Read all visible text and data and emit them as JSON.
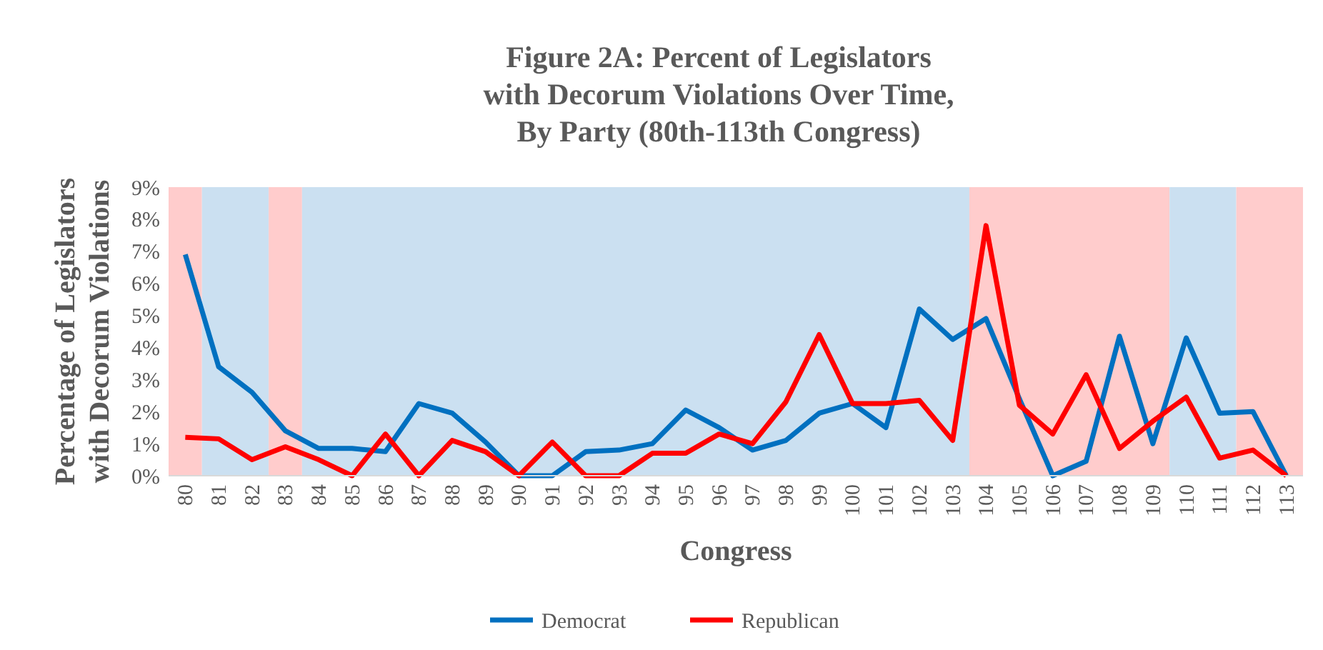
{
  "chart_data": {
    "type": "line",
    "title": "Figure 2A: Percent of Legislators\nwith Decorum Violations Over Time,\nBy Party (80th-113th Congress)",
    "xlabel": "Congress",
    "ylabel": "Percentage of Legislators\nwith Decorum Violations",
    "categories": [
      "80",
      "81",
      "82",
      "83",
      "84",
      "85",
      "86",
      "87",
      "88",
      "89",
      "90",
      "91",
      "92",
      "93",
      "94",
      "95",
      "96",
      "97",
      "98",
      "99",
      "100",
      "101",
      "102",
      "103",
      "104",
      "105",
      "106",
      "107",
      "108",
      "109",
      "110",
      "111",
      "112",
      "113"
    ],
    "series": [
      {
        "name": "Democrat",
        "color": "#0070c0",
        "values": [
          6.9,
          3.4,
          2.6,
          1.4,
          0.85,
          0.85,
          0.75,
          2.25,
          1.95,
          1.05,
          0,
          0,
          0.75,
          0.8,
          1.0,
          2.05,
          1.5,
          0.8,
          1.1,
          1.95,
          2.25,
          1.5,
          5.2,
          4.25,
          4.9,
          2.4,
          0,
          0.45,
          4.35,
          1.0,
          4.3,
          1.95,
          2.0,
          0
        ]
      },
      {
        "name": "Republican",
        "color": "#ff0000",
        "values": [
          1.2,
          1.15,
          0.5,
          0.9,
          0.5,
          0,
          1.3,
          0,
          1.1,
          0.75,
          0,
          1.05,
          0,
          0,
          0.7,
          0.7,
          1.3,
          1.0,
          2.3,
          4.4,
          2.25,
          2.25,
          2.35,
          1.1,
          7.8,
          2.2,
          1.3,
          3.15,
          0.85,
          1.7,
          2.45,
          0.55,
          0.8,
          0
        ]
      }
    ],
    "ylim": [
      0,
      9
    ],
    "yticks": [
      {
        "value": 0,
        "label": "0%"
      },
      {
        "value": 1,
        "label": "1%"
      },
      {
        "value": 2,
        "label": "2%"
      },
      {
        "value": 3,
        "label": "3%"
      },
      {
        "value": 4,
        "label": "4%"
      },
      {
        "value": 5,
        "label": "5%"
      },
      {
        "value": 6,
        "label": "6%"
      },
      {
        "value": 7,
        "label": "7%"
      },
      {
        "value": 8,
        "label": "8%"
      },
      {
        "value": 9,
        "label": "9%"
      }
    ],
    "bands": [
      {
        "axis": "x",
        "from": "80",
        "to": "80",
        "color": "#ffcccc"
      },
      {
        "axis": "x",
        "from": "81",
        "to": "82",
        "color": "#cbe0f1"
      },
      {
        "axis": "x",
        "from": "83",
        "to": "83",
        "color": "#ffcccc"
      },
      {
        "axis": "x",
        "from": "84",
        "to": "103",
        "color": "#cbe0f1"
      },
      {
        "axis": "x",
        "from": "104",
        "to": "109",
        "color": "#ffcccc"
      },
      {
        "axis": "x",
        "from": "110",
        "to": "111",
        "color": "#cbe0f1"
      },
      {
        "axis": "x",
        "from": "112",
        "to": "113",
        "color": "#ffcccc"
      }
    ],
    "grid": false,
    "legend": "bottom",
    "marker": "none",
    "line_style": "solid"
  }
}
